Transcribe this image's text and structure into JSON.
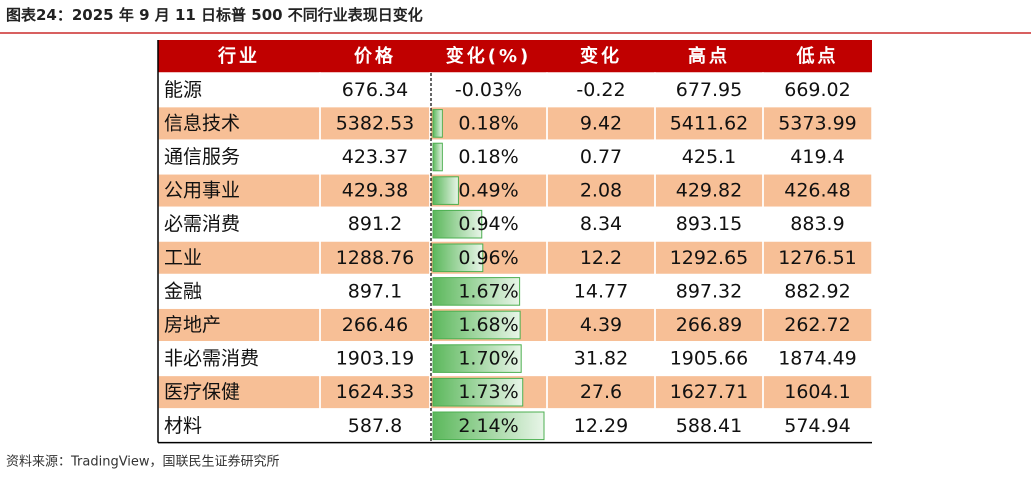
{
  "title": "图表24：2025 年 9 月 11 日标普 500 不同行业表现日变化",
  "table": {
    "header": [
      "行业",
      "价格",
      "变化(%)",
      "变化",
      "高点",
      "低点"
    ],
    "rows": [
      [
        "能源",
        676.34,
        {
          "value": -0.03,
          "label": "-0.03%"
        },
        -0.22,
        677.95,
        669.02
      ],
      [
        "信息技术",
        5382.53,
        {
          "value": 0.18,
          "label": "0.18%"
        },
        9.42,
        5411.62,
        5373.99
      ],
      [
        "通信服务",
        423.37,
        {
          "value": 0.18,
          "label": "0.18%"
        },
        0.77,
        425.1,
        419.4
      ],
      [
        "公用事业",
        429.38,
        {
          "value": 0.49,
          "label": "0.49%"
        },
        2.08,
        429.82,
        426.48
      ],
      [
        "必需消费",
        891.2,
        {
          "value": 0.94,
          "label": "0.94%"
        },
        8.34,
        893.15,
        883.9
      ],
      [
        "工业",
        1288.76,
        {
          "value": 0.96,
          "label": "0.96%"
        },
        12.2,
        1292.65,
        1276.51
      ],
      [
        "金融",
        897.1,
        {
          "value": 1.67,
          "label": "1.67%"
        },
        14.77,
        897.32,
        882.92
      ],
      [
        "房地产",
        266.46,
        {
          "value": 1.68,
          "label": "1.68%"
        },
        4.39,
        266.89,
        262.72
      ],
      [
        "非必需消费",
        1903.19,
        {
          "value": 1.7,
          "label": "1.70%"
        },
        31.82,
        1905.66,
        1874.49
      ],
      [
        "医疗保健",
        1624.33,
        {
          "value": 1.73,
          "label": "1.73%"
        },
        27.6,
        1627.71,
        1604.1
      ],
      [
        "材料",
        587.8,
        {
          "value": 2.14,
          "label": "2.14%"
        },
        12.29,
        588.41,
        574.94
      ]
    ]
  },
  "source": "资料来源：TradingView，国联民生证券研究所"
}
